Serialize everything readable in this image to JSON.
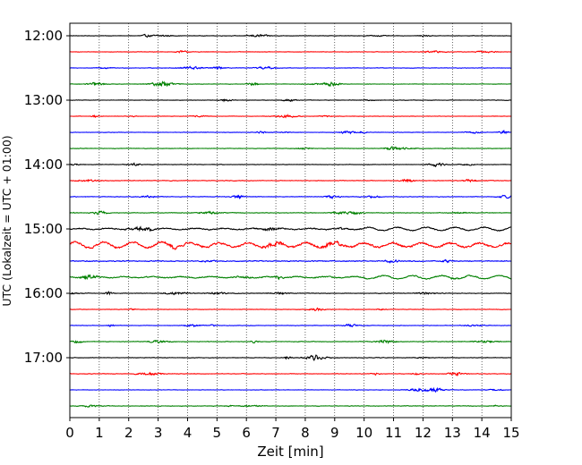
{
  "chart_data": {
    "type": "line",
    "title": "",
    "xlabel": "Zeit  [min]",
    "ylabel": "UTC (Lokalzeit = UTC + 01:00)",
    "xlim": [
      0,
      15
    ],
    "x_ticks": [
      "0",
      "1",
      "2",
      "3",
      "4",
      "5",
      "6",
      "7",
      "8",
      "9",
      "10",
      "11",
      "12",
      "13",
      "14",
      "15"
    ],
    "y_ticks": [
      {
        "label": "12:00",
        "trace_index": 0
      },
      {
        "label": "13:00",
        "trace_index": 4
      },
      {
        "label": "14:00",
        "trace_index": 8
      },
      {
        "label": "15:00",
        "trace_index": 12
      },
      {
        "label": "16:00",
        "trace_index": 16
      },
      {
        "label": "17:00",
        "trace_index": 20
      }
    ],
    "grid": "vertical dotted",
    "trace_interval_min": 15,
    "trace_colors": [
      "#000000",
      "#ff0000",
      "#0000ff",
      "#008000"
    ],
    "traces": [
      {
        "start": "12:00",
        "color": "#000000",
        "activity": 0.25
      },
      {
        "start": "12:15",
        "color": "#ff0000",
        "activity": 0.25
      },
      {
        "start": "12:30",
        "color": "#0000ff",
        "activity": 0.25
      },
      {
        "start": "12:45",
        "color": "#008000",
        "activity": 0.22
      },
      {
        "start": "13:00",
        "color": "#000000",
        "activity": 0.25
      },
      {
        "start": "13:15",
        "color": "#ff0000",
        "activity": 0.22
      },
      {
        "start": "13:30",
        "color": "#0000ff",
        "activity": 0.25
      },
      {
        "start": "13:45",
        "color": "#008000",
        "activity": 0.25
      },
      {
        "start": "14:00",
        "color": "#000000",
        "activity": 0.25
      },
      {
        "start": "14:15",
        "color": "#ff0000",
        "activity": 0.3
      },
      {
        "start": "14:30",
        "color": "#0000ff",
        "activity": 0.3
      },
      {
        "start": "14:45",
        "color": "#008000",
        "activity": 0.3
      },
      {
        "start": "15:00",
        "color": "#000000",
        "activity": 0.55
      },
      {
        "start": "15:15",
        "color": "#ff0000",
        "activity": 1.0
      },
      {
        "start": "15:30",
        "color": "#0000ff",
        "activity": 0.45
      },
      {
        "start": "15:45",
        "color": "#008000",
        "activity": 0.55
      },
      {
        "start": "16:00",
        "color": "#000000",
        "activity": 0.3
      },
      {
        "start": "16:15",
        "color": "#ff0000",
        "activity": 0.25
      },
      {
        "start": "16:30",
        "color": "#0000ff",
        "activity": 0.25
      },
      {
        "start": "16:45",
        "color": "#008000",
        "activity": 0.3
      },
      {
        "start": "17:00",
        "color": "#000000",
        "activity": 0.28
      },
      {
        "start": "17:15",
        "color": "#ff0000",
        "activity": 0.28
      },
      {
        "start": "17:30",
        "color": "#0000ff",
        "activity": 0.22
      },
      {
        "start": "17:45",
        "color": "#008000",
        "activity": 0.3
      }
    ]
  }
}
